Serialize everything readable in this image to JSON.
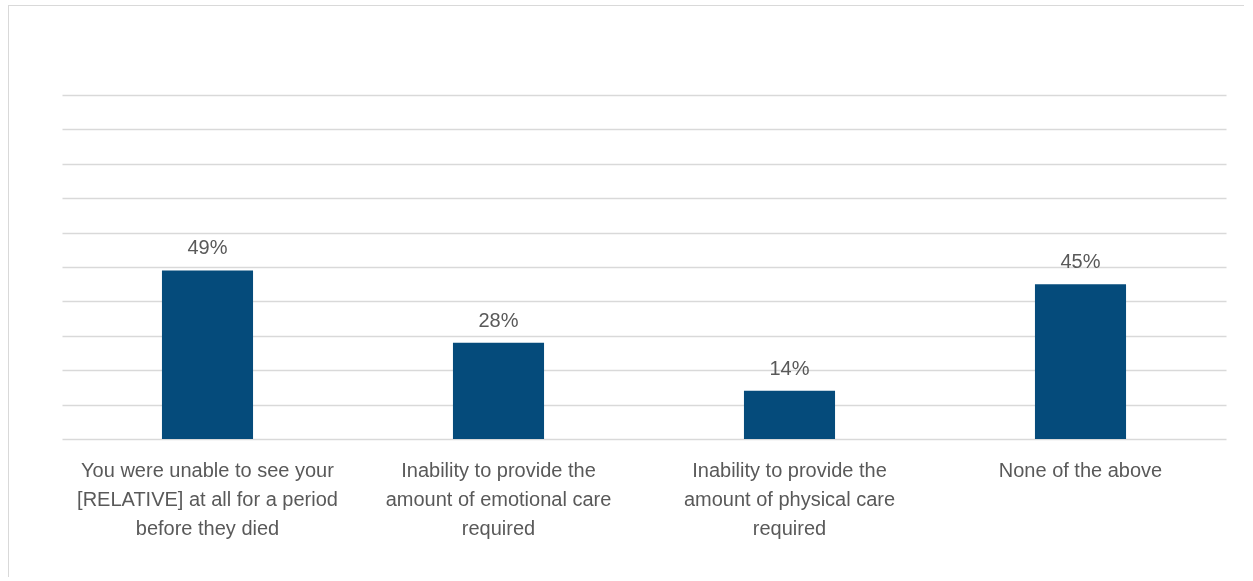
{
  "chart_data": {
    "type": "bar",
    "categories": [
      "You were unable to see your [RELATIVE] at all for a period before they died",
      "Inability to provide the amount of emotional care required",
      "Inability to provide the amount of physical care required",
      "None of the above"
    ],
    "values": [
      49,
      28,
      14,
      45
    ],
    "color": "#054b7b",
    "value_labels": [
      "49%",
      "28%",
      "14%",
      "45%"
    ],
    "ylim": [
      0,
      100
    ],
    "yticks": [
      {
        "value": 0,
        "label": null
      },
      {
        "value": 10,
        "label": null
      },
      {
        "value": 20,
        "label": null
      },
      {
        "value": 30,
        "label": null
      },
      {
        "value": 40,
        "label": null
      },
      {
        "value": 50,
        "label": null
      },
      {
        "value": 60,
        "label": null
      },
      {
        "value": 70,
        "label": null
      },
      {
        "value": 80,
        "label": null
      },
      {
        "value": 90,
        "label": null
      },
      {
        "value": 100,
        "label": null
      }
    ],
    "grid": "y",
    "tick_labels": "x"
  }
}
